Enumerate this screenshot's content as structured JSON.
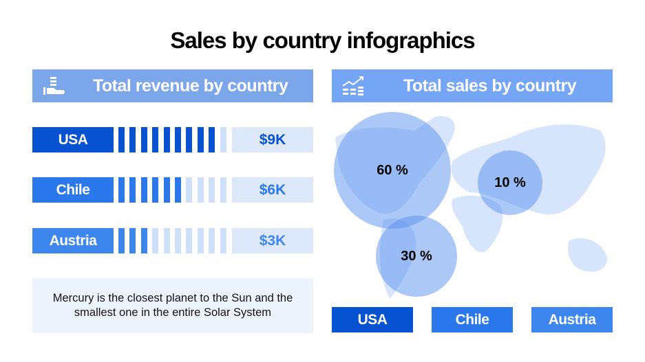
{
  "title": "Sales by country infographics",
  "revenue": {
    "header": "Total revenue by country",
    "icon": "coin-hand-icon",
    "rows": [
      {
        "country": "USA",
        "value": "$9K",
        "filled": 9,
        "total": 10,
        "color": "#0652d0"
      },
      {
        "country": "Chile",
        "value": "$6K",
        "filled": 6,
        "total": 10,
        "color": "#2a78ec"
      },
      {
        "country": "Austria",
        "value": "$3K",
        "filled": 3,
        "total": 10,
        "color": "#3d86ee"
      }
    ],
    "note": "Mercury is the closest planet to the Sun and the smallest one in the entire Solar System"
  },
  "sales": {
    "header": "Total sales by country",
    "icon": "growth-chart-icon",
    "bubbles": [
      {
        "label": "60 %",
        "value": 60
      },
      {
        "label": "10 %",
        "value": 10
      },
      {
        "label": "30 %",
        "value": 30
      }
    ],
    "countries": [
      {
        "name": "USA",
        "color": "#0652d0"
      },
      {
        "name": "Chile",
        "color": "#2a78ec"
      },
      {
        "name": "Austria",
        "color": "#3d86ee"
      }
    ]
  },
  "colors": {
    "header_left": "#7ba7ea",
    "header_right": "#74a6f5",
    "empty_bar": "#cfe0fa",
    "map": "#d6e5fb"
  }
}
